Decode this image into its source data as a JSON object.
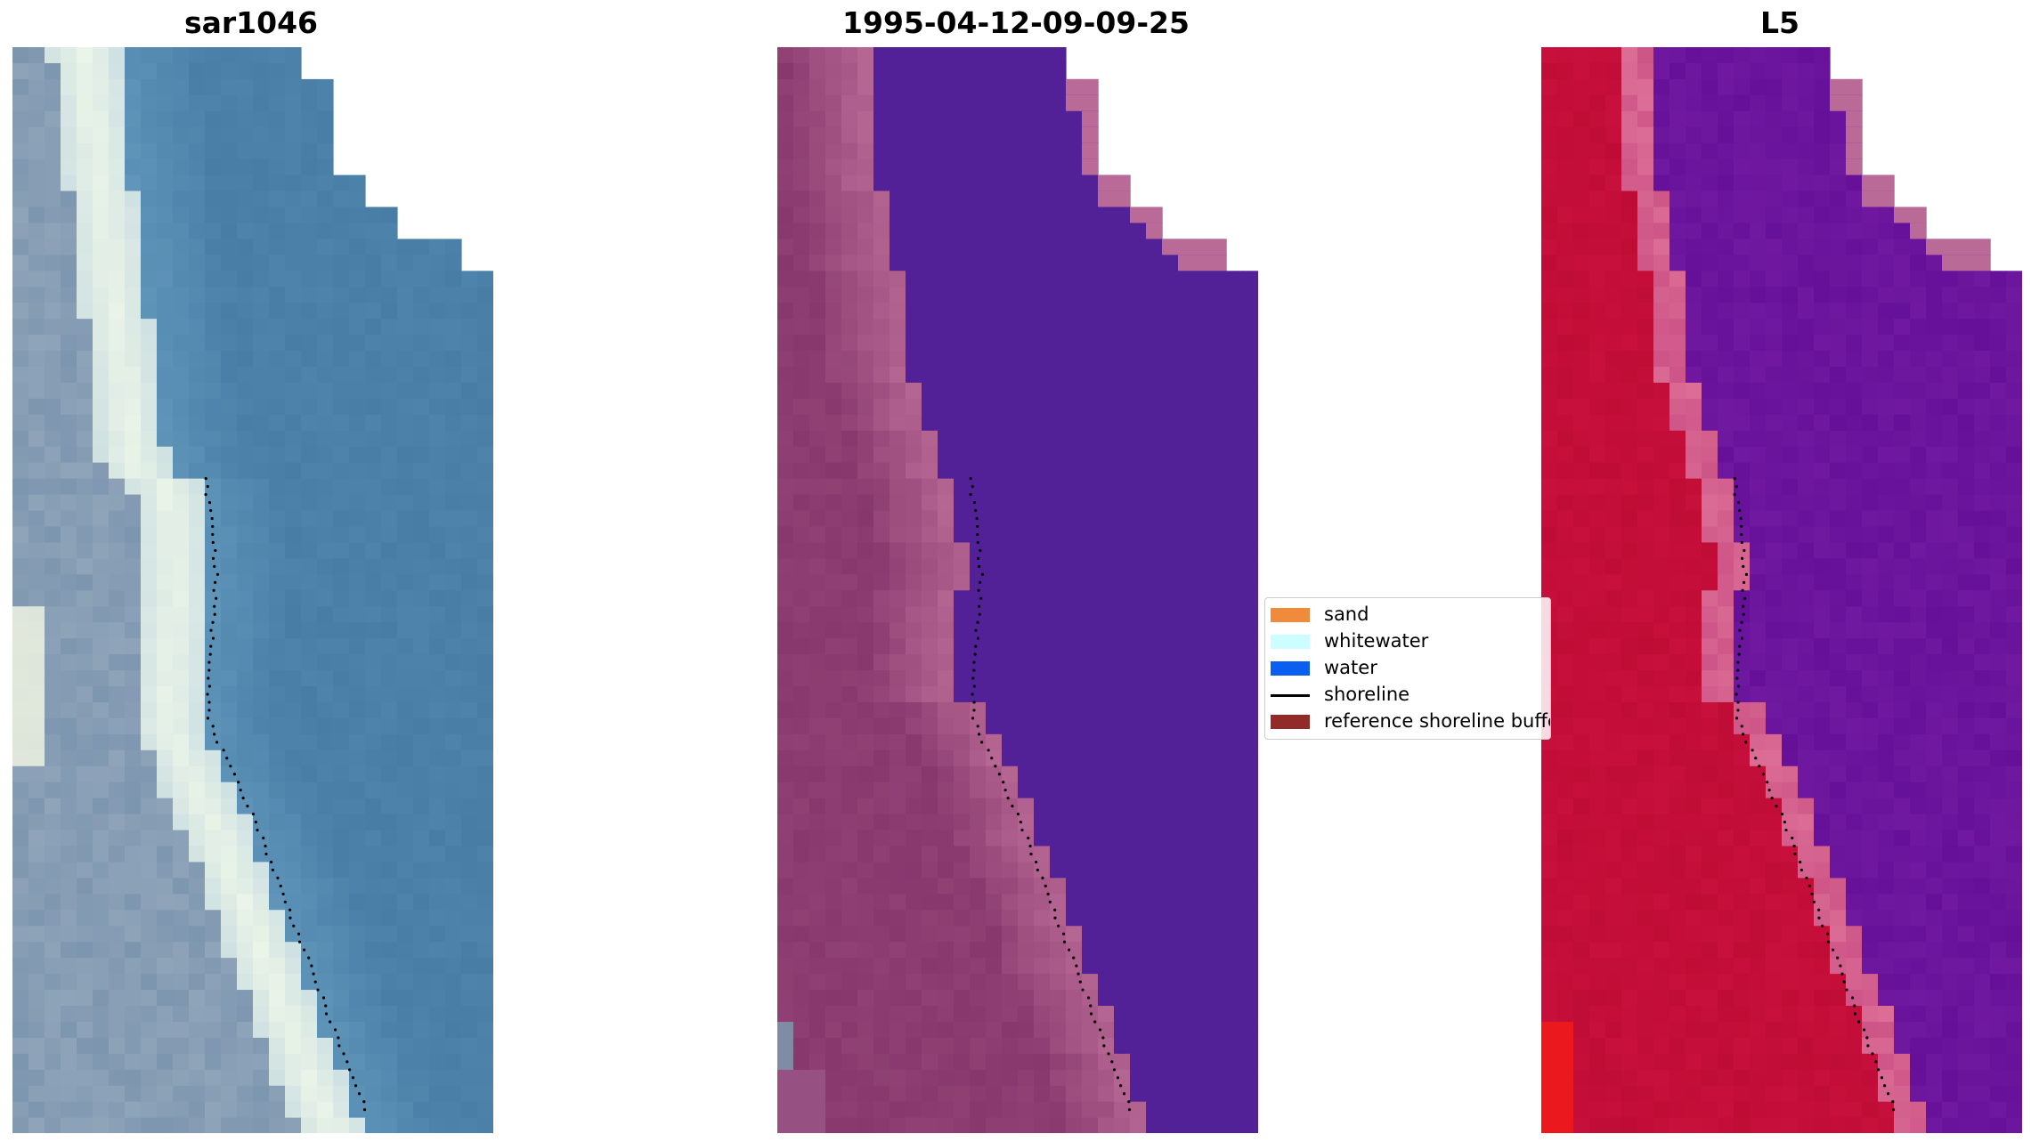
{
  "panels": [
    {
      "title": "sar1046",
      "style": "rgb"
    },
    {
      "title": "1995-04-12-09-09-25",
      "style": "classified"
    },
    {
      "title": "L5",
      "style": "index"
    }
  ],
  "legend": {
    "items": [
      {
        "label": "sand",
        "color": "#f28a3c",
        "kind": "patch"
      },
      {
        "label": "whitewater",
        "color": "#ccfdff",
        "kind": "patch"
      },
      {
        "label": "water",
        "color": "#0a5ff0",
        "kind": "patch"
      },
      {
        "label": "shoreline",
        "color": "#000000",
        "kind": "line"
      },
      {
        "label": "reference shoreline buffer",
        "color": "#932a2a",
        "kind": "patch"
      }
    ]
  },
  "colors": {
    "water_class": "#532197",
    "sand_overlay": "#b96a96",
    "index_land": "#c20f3a",
    "index_water": "#6a17a0",
    "index_edge": "#d95f95",
    "rgb_water": "#4b7ea7",
    "rgb_foam": "#f0f7ea",
    "shoreline_dots": "#000000"
  }
}
